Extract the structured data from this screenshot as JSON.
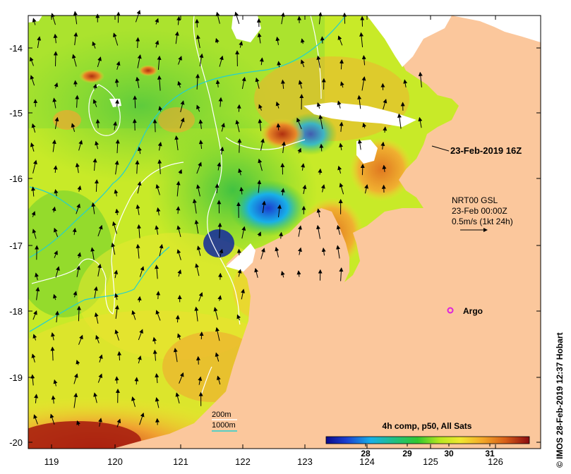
{
  "map": {
    "longitude_ticks": [
      "119",
      "120",
      "121",
      "122",
      "123",
      "124",
      "125",
      "126"
    ],
    "latitude_ticks": [
      "-14",
      "-15",
      "-16",
      "-17",
      "-18",
      "-19",
      "-20"
    ],
    "timestamp": "23-Feb-2019 16Z",
    "current_vector": {
      "line1": "NRT00 GSL",
      "line2": "23-Feb 00:00Z",
      "line3": "0.5m/s (1kt 24h)"
    },
    "argo_label": "Argo",
    "bathymetry_legend": {
      "contour_200": "200m",
      "contour_1000": "1000m"
    },
    "colorbar": {
      "title": "4h comp, p50, All Sats",
      "tick_labels": [
        "28",
        "29",
        "30",
        "31"
      ]
    },
    "credit": "© IMOS 28-Feb-2019 12:37 Hobart"
  },
  "colors": {
    "land": "#fbc79c",
    "cloud": "#ffffff",
    "contour_200": "#ffffff",
    "contour_1000": "#22d0d0",
    "argo": "#dd22dd"
  }
}
